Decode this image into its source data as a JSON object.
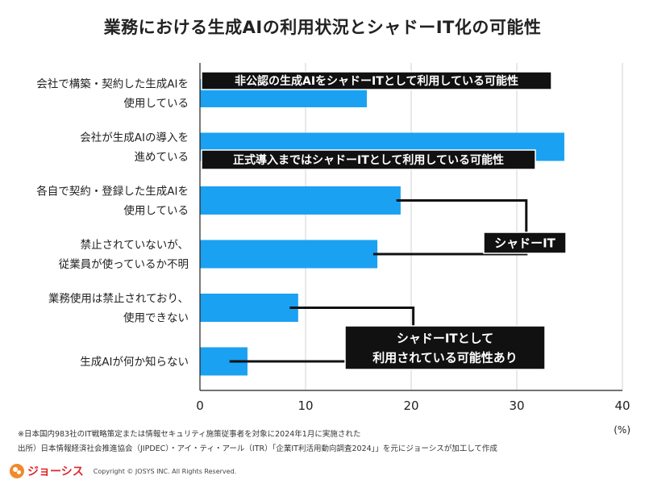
{
  "title": "業務における生成AIの利用状況とシャドーIT化の可能性",
  "chart_data": {
    "type": "bar",
    "orientation": "horizontal",
    "categories": [
      [
        "会社で構築・契約した生成AIを",
        "使用している"
      ],
      [
        "会社が生成AIの導入を",
        "進めている"
      ],
      [
        "各自で契約・登録した生成AIを",
        "使用している"
      ],
      [
        "禁止されていないが、",
        "従業員が使っているか不明"
      ],
      [
        "業務使用は禁止されており、",
        "使用できない"
      ],
      [
        "生成AIが何か知らない"
      ]
    ],
    "values": [
      15.8,
      34.5,
      19.0,
      16.8,
      9.3,
      4.5
    ],
    "xlim": [
      0,
      40
    ],
    "xticks": [
      0,
      10,
      20,
      30,
      40
    ],
    "unit": "(%)",
    "bar_color": "#1ba1f2",
    "annotations": {
      "box1": "非公認の生成AIをシャドーITとして利用している可能性",
      "box2": "正式導入まではシャドーITとして利用している可能性",
      "box3": "シャドーIT",
      "box4": [
        "シャドーITとして",
        "利用されている可能性あり"
      ]
    }
  },
  "footer": {
    "note1": "※日本国内983社のIT戦略策定または情報セキュリティ施策従事者を対象に2024年1月に実施された",
    "note2": "出所）日本情報経済社会推進協会（JIPDEC）・アイ・ティ・アール（ITR）「企業IT利活用動向調査2024」」を元にジョーシスが加工して作成",
    "logo": "ジョーシス",
    "copyright": "Copyright  ©  JOSYS  INC.  All  Rights  Reserved."
  }
}
